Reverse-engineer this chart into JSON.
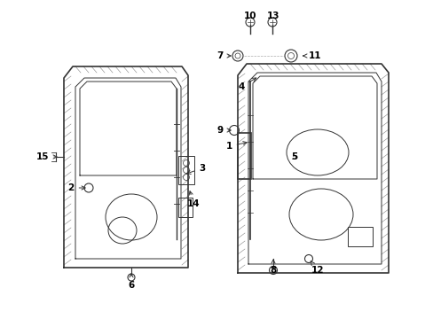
{
  "bg_color": "#ffffff",
  "line_color": "#333333",
  "text_color": "#000000",
  "figsize": [
    4.89,
    3.6
  ],
  "dpi": 100,
  "labels": {
    "1": [
      258,
      195,
      282,
      200
    ],
    "2": [
      80,
      148,
      100,
      148
    ],
    "3": [
      228,
      170,
      207,
      163
    ],
    "4": [
      272,
      262,
      292,
      274
    ],
    "5": [
      332,
      183,
      332,
      183
    ],
    "6": [
      148,
      38,
      148,
      55
    ],
    "7": [
      248,
      297,
      264,
      297
    ],
    "8": [
      308,
      55,
      308,
      68
    ],
    "9": [
      248,
      213,
      264,
      213
    ],
    "10": [
      282,
      342,
      282,
      342
    ],
    "11": [
      355,
      297,
      338,
      297
    ],
    "12": [
      358,
      55,
      348,
      68
    ],
    "13": [
      308,
      342,
      308,
      342
    ],
    "14": [
      218,
      130,
      213,
      148
    ],
    "15": [
      48,
      183,
      68,
      183
    ]
  }
}
